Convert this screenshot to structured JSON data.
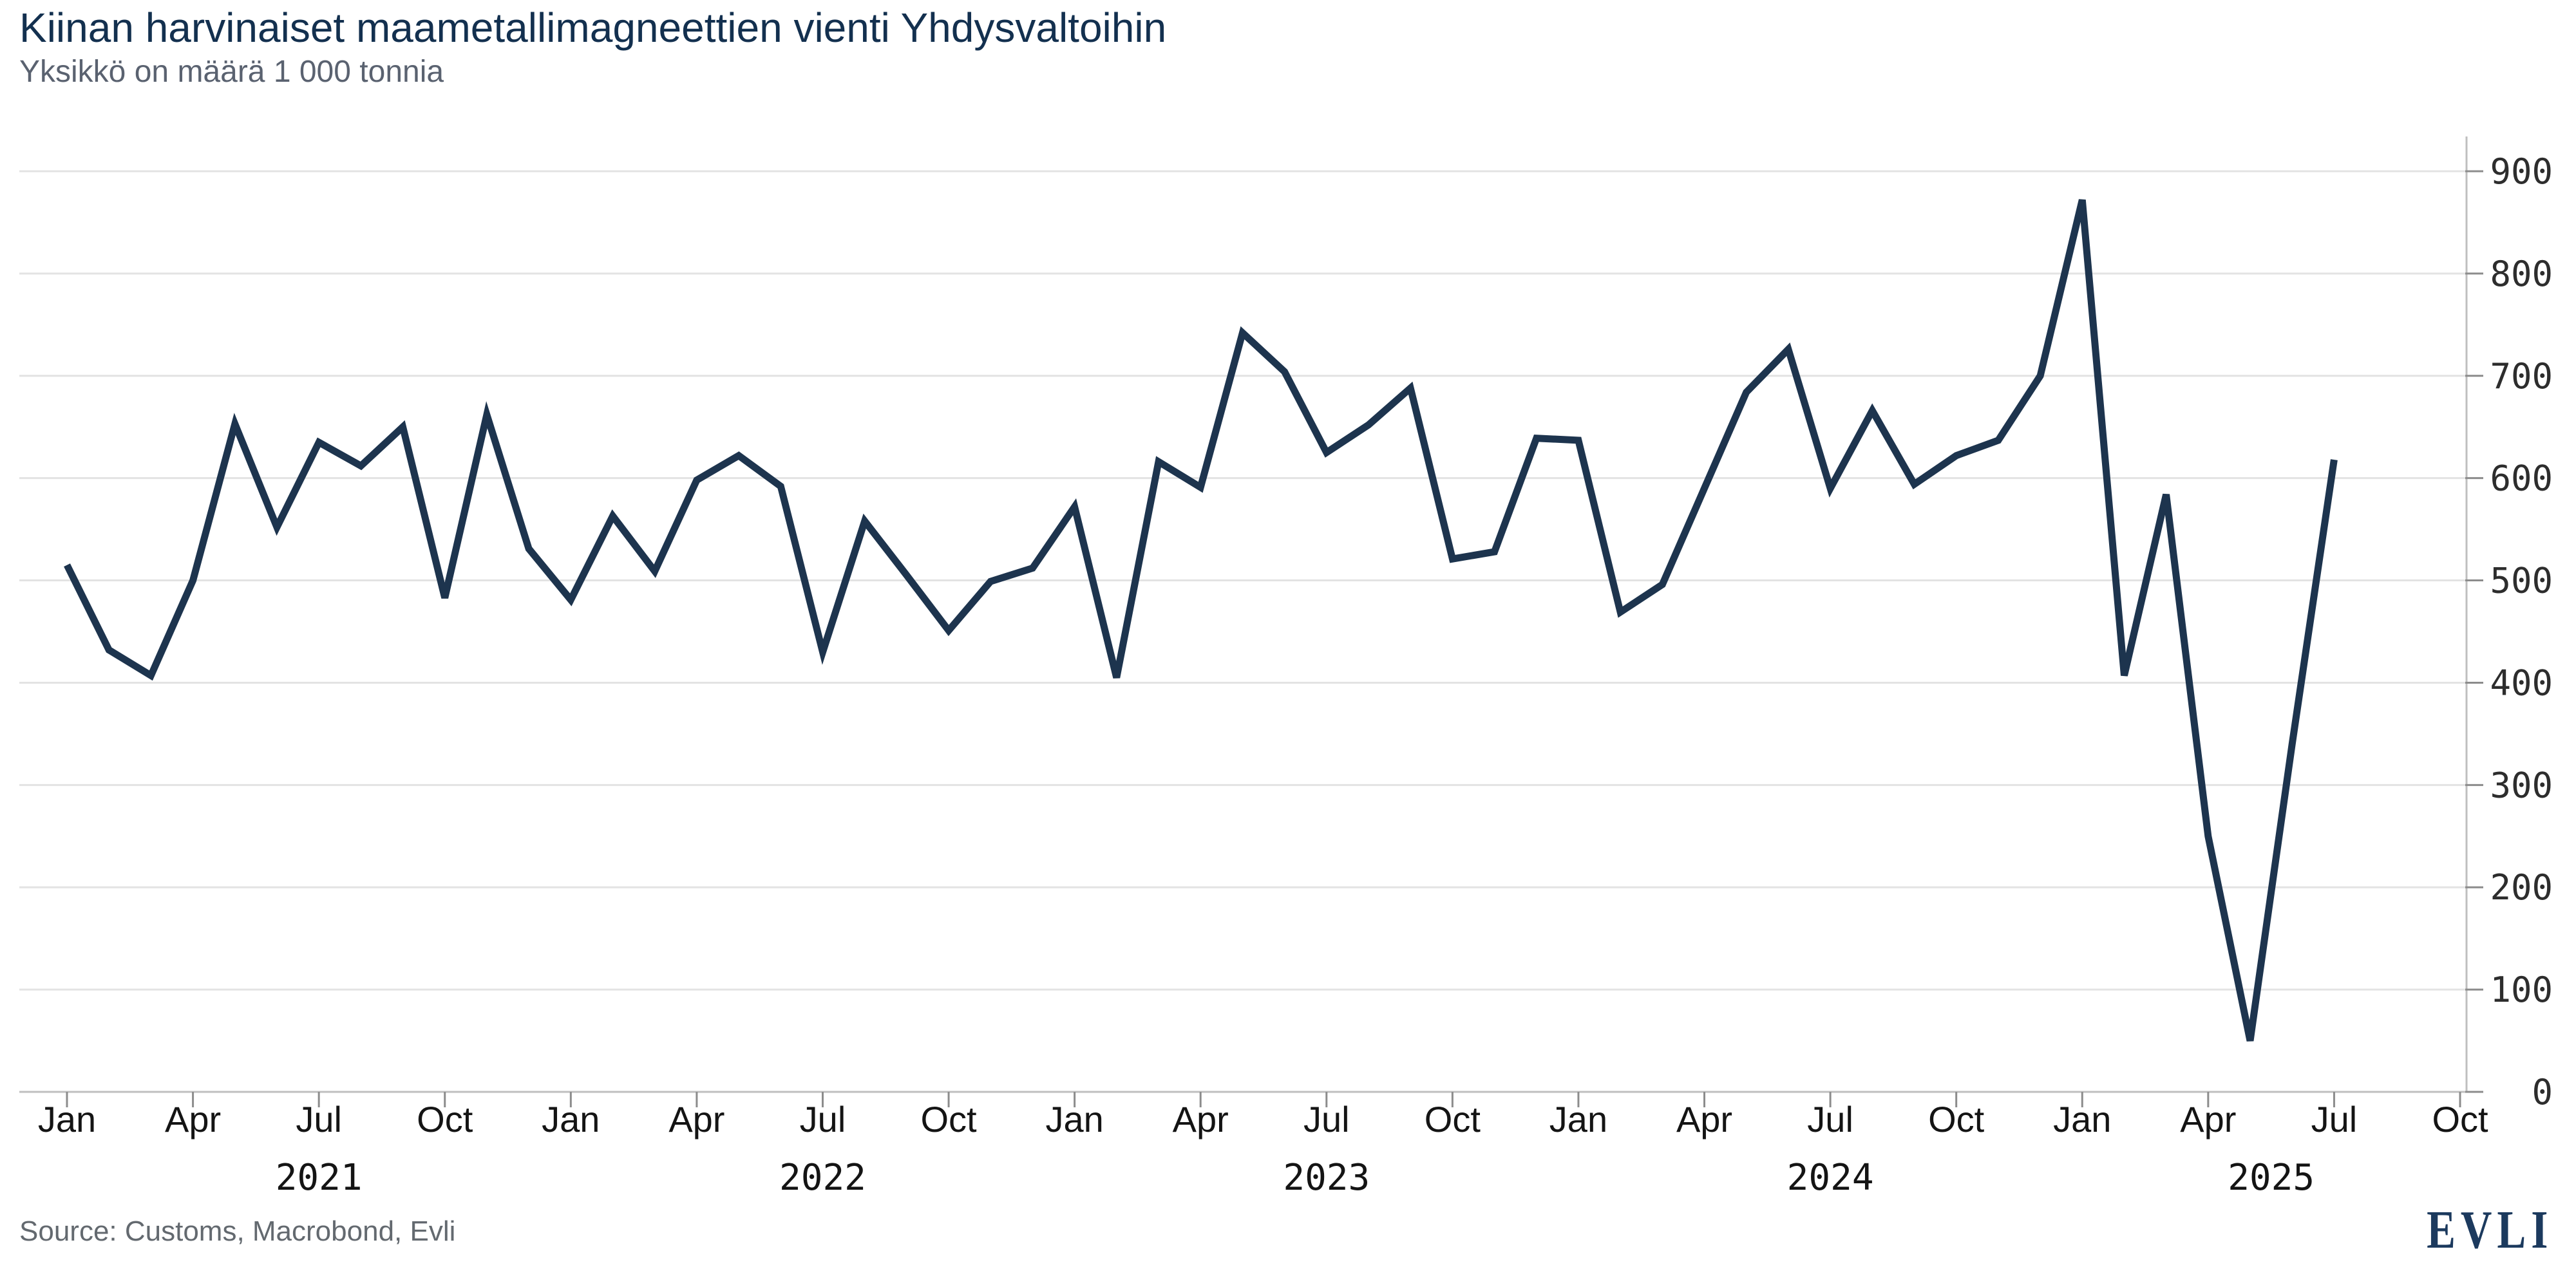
{
  "header": {
    "title": "Kiinan harvinaiset maametallimagneettien vienti Yhdysvaltoihin",
    "subtitle": "Yksikkö on määrä 1 000 tonnia"
  },
  "footer": {
    "source": "Source: Customs, Macrobond, Evli",
    "logo": "EVLI"
  },
  "colors": {
    "line": "#1d344e",
    "title": "#13304f",
    "subtitle_gray": "#5a6270",
    "gridline": "#e3e3e3",
    "axis": "#bfbfbf",
    "logo_navy": "#1c3a5e"
  },
  "chart_data": {
    "type": "line",
    "title": "Kiinan harvinaiset maametallimagneettien vienti Yhdysvaltoihin",
    "unit_label": "Yksikkö on määrä 1 000 tonnia",
    "xlabel": "",
    "ylabel": "",
    "ylim": [
      0,
      900
    ],
    "y_ticks": [
      0,
      100,
      200,
      300,
      400,
      500,
      600,
      700,
      800,
      900
    ],
    "y_axis_side": "right",
    "grid": "horizontal",
    "legend": "none",
    "x_tick_month_cycle": [
      "Jan",
      "Apr",
      "Jul",
      "Oct"
    ],
    "x_tick_step_months": 3,
    "x_axis_end_month": "2025-10",
    "year_labels": [
      "2021",
      "2022",
      "2023",
      "2024",
      "2025"
    ],
    "months": [
      "2021-01",
      "2021-02",
      "2021-03",
      "2021-04",
      "2021-05",
      "2021-06",
      "2021-07",
      "2021-08",
      "2021-09",
      "2021-10",
      "2021-11",
      "2021-12",
      "2022-01",
      "2022-02",
      "2022-03",
      "2022-04",
      "2022-05",
      "2022-06",
      "2022-07",
      "2022-08",
      "2022-09",
      "2022-10",
      "2022-11",
      "2022-12",
      "2023-01",
      "2023-02",
      "2023-03",
      "2023-04",
      "2023-05",
      "2023-06",
      "2023-07",
      "2023-08",
      "2023-09",
      "2023-10",
      "2023-11",
      "2023-12",
      "2024-01",
      "2024-02",
      "2024-03",
      "2024-04",
      "2024-05",
      "2024-06",
      "2024-07",
      "2024-08",
      "2024-09",
      "2024-10",
      "2024-11",
      "2024-12",
      "2025-01",
      "2025-02",
      "2025-03",
      "2025-04",
      "2025-05",
      "2025-06",
      "2025-07"
    ],
    "values": [
      515,
      432,
      407,
      500,
      653,
      552,
      635,
      612,
      650,
      483,
      662,
      531,
      481,
      563,
      509,
      598,
      622,
      592,
      430,
      558,
      505,
      451,
      499,
      512,
      572,
      405,
      616,
      591,
      742,
      704,
      625,
      652,
      688,
      521,
      528,
      639,
      637,
      469,
      496,
      590,
      684,
      726,
      590,
      666,
      594,
      622,
      637,
      700,
      872,
      407,
      584,
      250,
      50,
      340,
      618
    ]
  }
}
